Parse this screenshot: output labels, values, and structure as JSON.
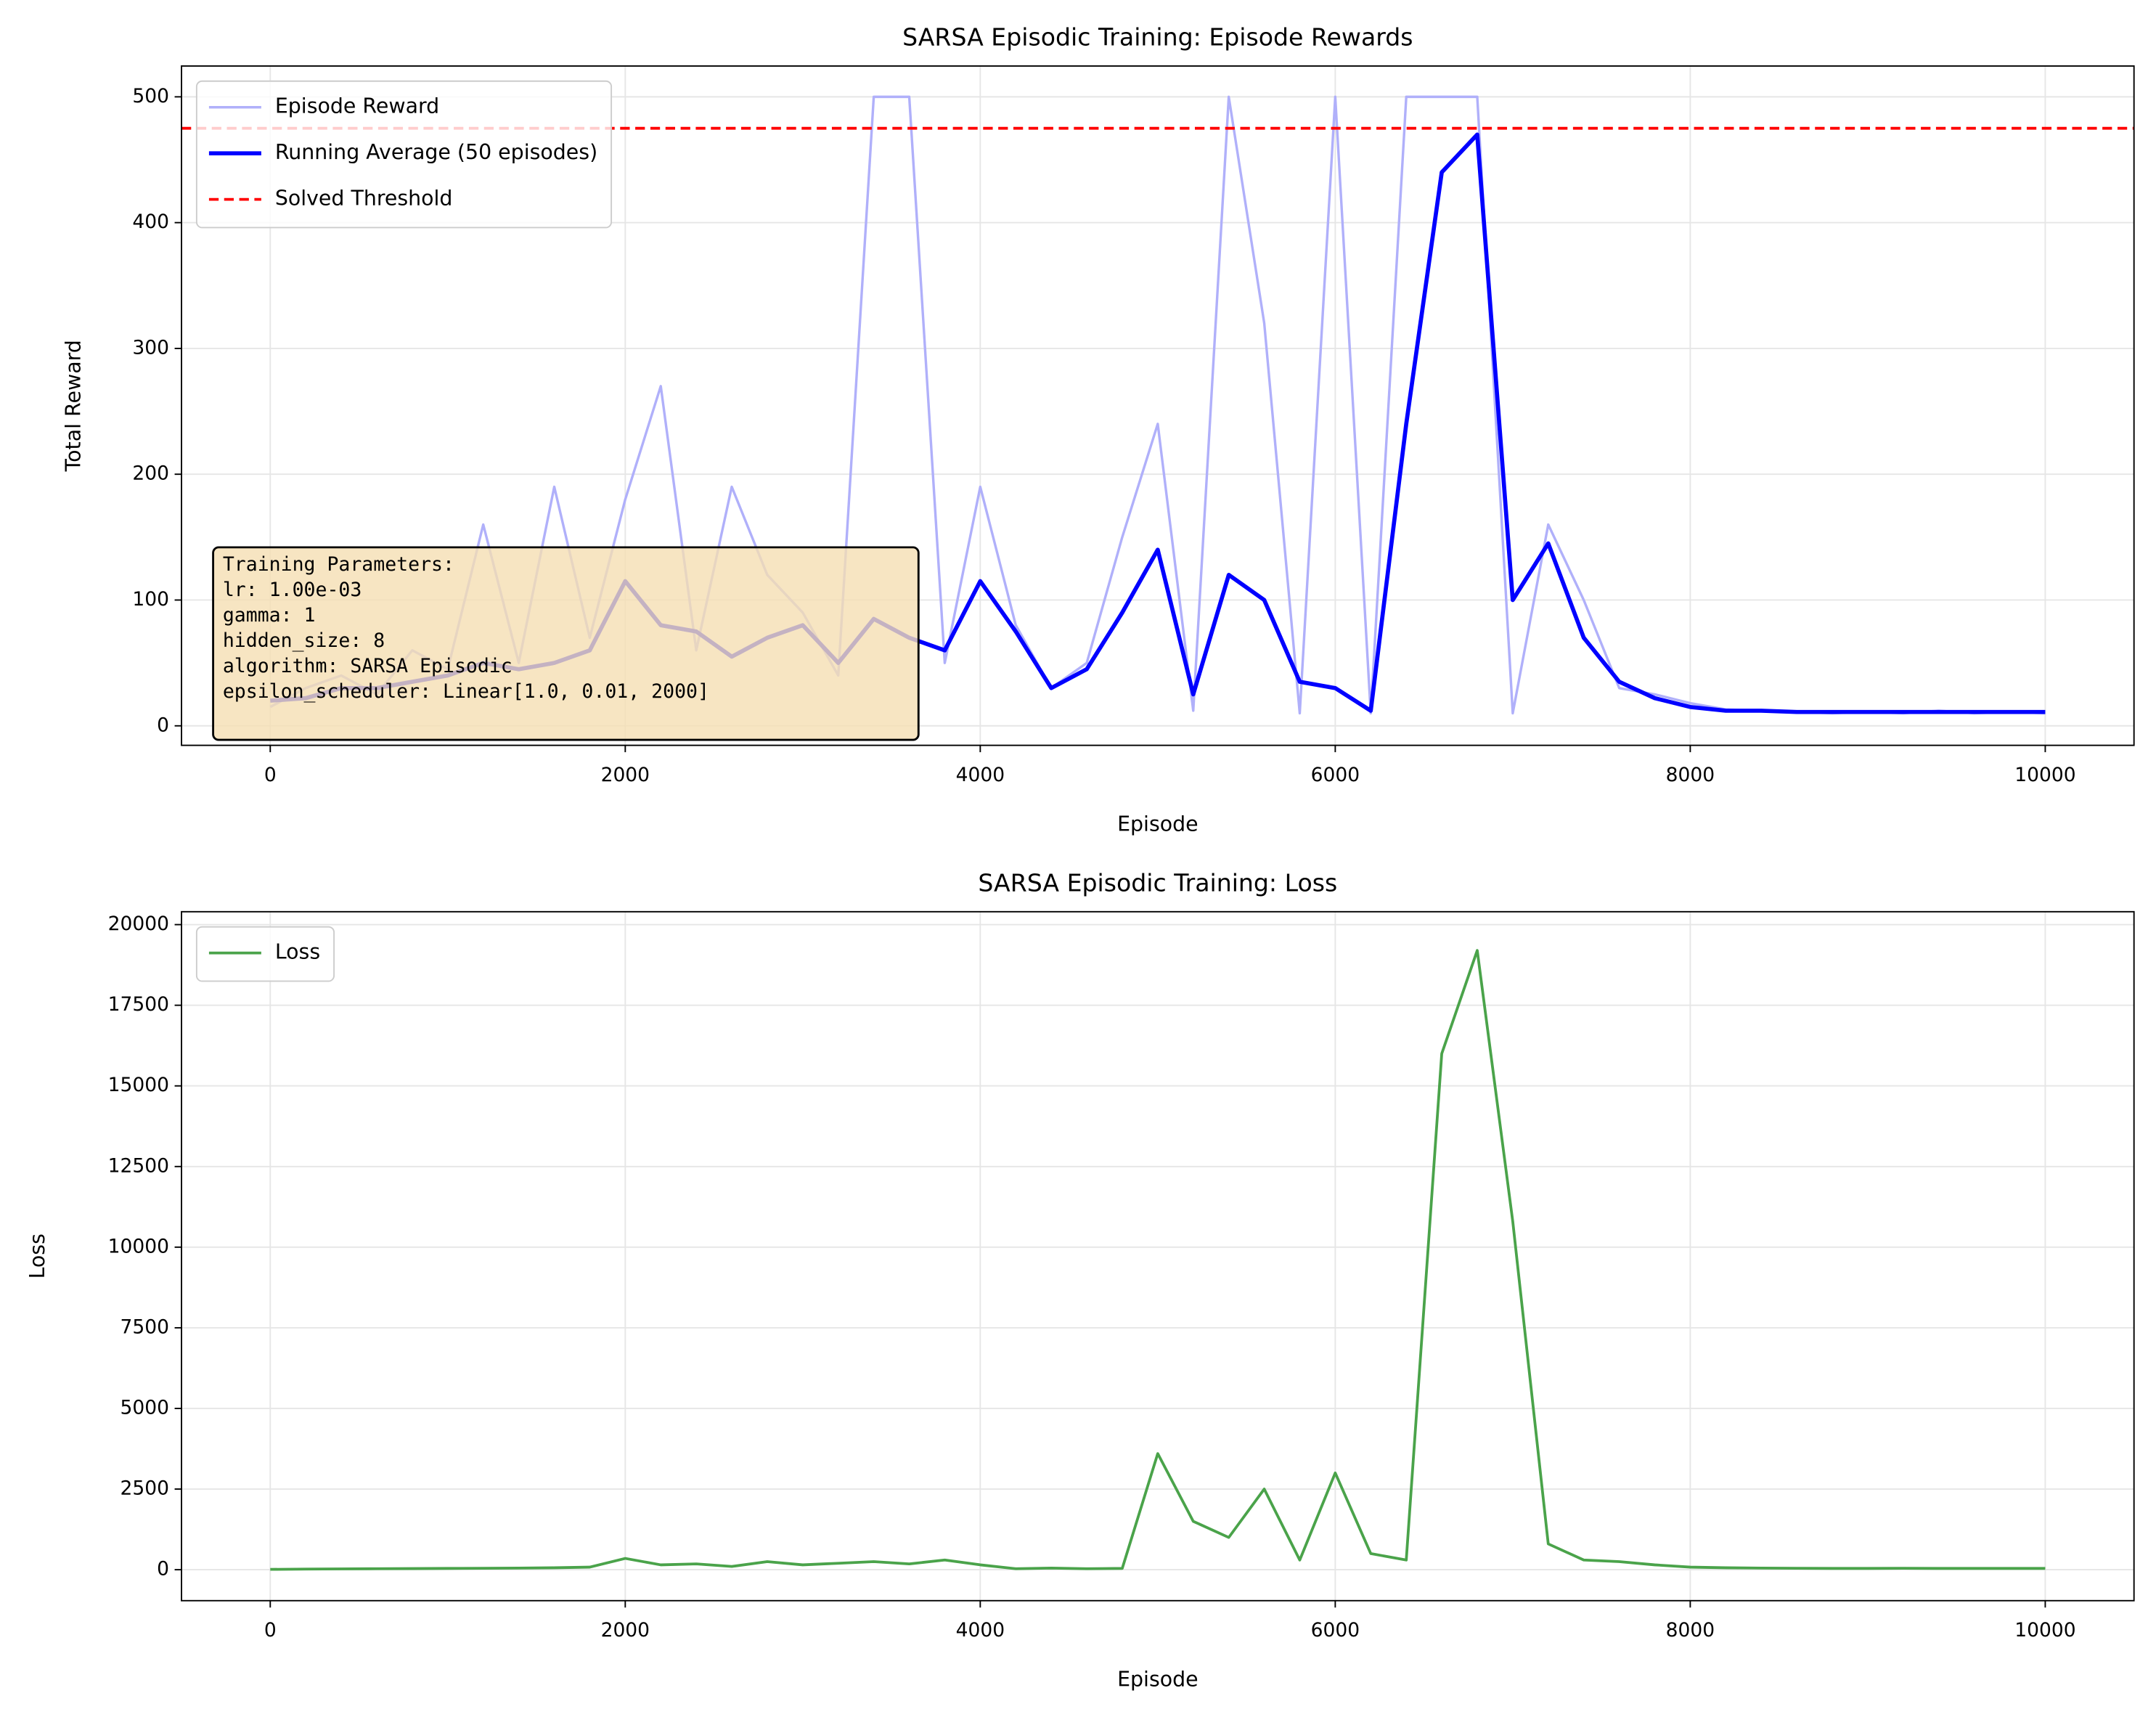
{
  "chart_data": [
    {
      "type": "line",
      "title": "SARSA Episodic Training: Episode Rewards",
      "xlabel": "Episode",
      "ylabel": "Total Reward",
      "x": [
        0,
        200,
        400,
        600,
        800,
        1000,
        1200,
        1400,
        1600,
        1800,
        2000,
        2200,
        2400,
        2600,
        2800,
        3000,
        3200,
        3400,
        3600,
        3800,
        4000,
        4200,
        4400,
        4600,
        4800,
        5000,
        5200,
        5400,
        5600,
        5800,
        6000,
        6200,
        6400,
        6600,
        6800,
        7000,
        7200,
        7400,
        7600,
        7800,
        8000,
        8200,
        8400,
        8600,
        8800,
        9000,
        9200,
        9400,
        9600,
        9800,
        10000
      ],
      "series": [
        {
          "name": "Episode Reward",
          "color": "#b0b0fa",
          "width": 1.8,
          "values": [
            15,
            30,
            40,
            25,
            60,
            45,
            160,
            50,
            190,
            70,
            180,
            270,
            60,
            190,
            120,
            90,
            40,
            500,
            500,
            50,
            190,
            80,
            30,
            50,
            150,
            240,
            12,
            500,
            320,
            10,
            500,
            10,
            500,
            500,
            500,
            10,
            160,
            100,
            30,
            25,
            18,
            13,
            12,
            11,
            10,
            11,
            10,
            12,
            10,
            11,
            10
          ]
        },
        {
          "name": "Running Average (50 episodes)",
          "color": "#0000ff",
          "width": 3,
          "values": [
            20,
            22,
            30,
            30,
            35,
            40,
            50,
            45,
            50,
            60,
            115,
            80,
            75,
            55,
            70,
            80,
            50,
            85,
            70,
            60,
            115,
            75,
            30,
            45,
            90,
            140,
            25,
            120,
            100,
            35,
            30,
            12,
            240,
            440,
            470,
            100,
            145,
            70,
            35,
            22,
            15,
            12,
            12,
            11,
            11,
            11,
            11,
            11,
            11,
            11,
            11
          ]
        }
      ],
      "threshold": {
        "name": "Solved Threshold",
        "value": 475,
        "color": "#ff0000"
      },
      "xlim": [
        -500,
        10500
      ],
      "ylim": [
        -15.5,
        524.5
      ],
      "xticks": [
        0,
        2000,
        4000,
        6000,
        8000,
        10000
      ],
      "yticks": [
        0,
        100,
        200,
        300,
        400,
        500
      ],
      "grid": true,
      "legend": "upper left",
      "annotation": [
        "Training Parameters:",
        "lr: 1.00e-03",
        "gamma: 1",
        "hidden_size: 8",
        "algorithm: SARSA Episodic",
        "epsilon_scheduler: Linear[1.0, 0.01, 2000]"
      ]
    },
    {
      "type": "line",
      "title": "SARSA Episodic Training: Loss",
      "xlabel": "Episode",
      "ylabel": "Loss",
      "x": [
        0,
        200,
        400,
        600,
        800,
        1000,
        1200,
        1400,
        1600,
        1800,
        2000,
        2200,
        2400,
        2600,
        2800,
        3000,
        3200,
        3400,
        3600,
        3800,
        4000,
        4200,
        4400,
        4600,
        4800,
        5000,
        5200,
        5400,
        5600,
        5800,
        6000,
        6200,
        6400,
        6600,
        6800,
        7000,
        7200,
        7400,
        7600,
        7800,
        8000,
        8200,
        8400,
        8600,
        8800,
        9000,
        9200,
        9400,
        9600,
        9800,
        10000
      ],
      "series": [
        {
          "name": "Loss",
          "color": "#4aa34a",
          "width": 2,
          "values": [
            10,
            20,
            25,
            30,
            35,
            40,
            45,
            50,
            60,
            80,
            350,
            150,
            180,
            100,
            250,
            150,
            200,
            250,
            180,
            300,
            150,
            30,
            50,
            30,
            40,
            3600,
            1500,
            1000,
            2500,
            300,
            3000,
            500,
            300,
            16000,
            19200,
            10800,
            800,
            300,
            250,
            150,
            80,
            60,
            50,
            45,
            40,
            40,
            45,
            40,
            40,
            40,
            40
          ]
        }
      ],
      "xlim": [
        -500,
        10500
      ],
      "ylim": [
        -960,
        20400
      ],
      "xticks": [
        0,
        2000,
        4000,
        6000,
        8000,
        10000
      ],
      "yticks": [
        0,
        2500,
        5000,
        7500,
        10000,
        12500,
        15000,
        17500,
        20000
      ],
      "grid": true,
      "legend": "upper left"
    }
  ]
}
